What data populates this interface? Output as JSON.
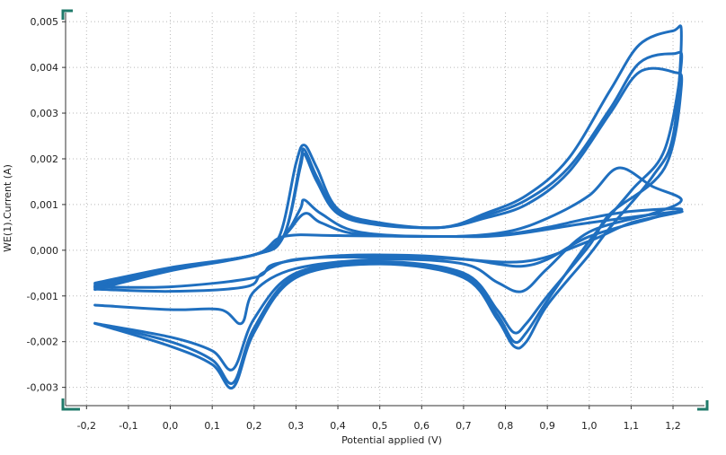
{
  "chart_data": {
    "type": "line",
    "title": "",
    "xlabel": "Potential applied (V)",
    "ylabel": "WE(1).Current (A)",
    "xlim": [
      -0.25,
      1.275
    ],
    "ylim": [
      -0.0034,
      0.0052
    ],
    "x_ticks": [
      "-0,2",
      "-0,1",
      "0,0",
      "0,1",
      "0,2",
      "0,3",
      "0,4",
      "0,5",
      "0,6",
      "0,7",
      "0,8",
      "0,9",
      "1,0",
      "1,1",
      "1,2"
    ],
    "y_ticks": [
      "0,005",
      "0,004",
      "0,003",
      "0,002",
      "0,001",
      "0,000",
      "-0,001",
      "-0,002",
      "-0,003"
    ],
    "x_tick_values": [
      -0.2,
      -0.1,
      0.0,
      0.1,
      0.2,
      0.3,
      0.4,
      0.5,
      0.6,
      0.7,
      0.8,
      0.9,
      1.0,
      1.1,
      1.2
    ],
    "y_tick_values": [
      0.005,
      0.004,
      0.003,
      0.002,
      0.001,
      0.0,
      -0.001,
      -0.002,
      -0.003
    ],
    "grid": true,
    "line_color": "#1f6fbf",
    "series": [
      {
        "values": [
          [
            -0.18,
            -0.00086
          ],
          [
            0.0,
            -0.00045
          ],
          [
            0.2,
            -0.0001
          ],
          [
            0.26,
            0.0003
          ],
          [
            0.3,
            0.0019
          ],
          [
            0.32,
            0.0023
          ],
          [
            0.35,
            0.0018
          ],
          [
            0.4,
            0.0009
          ],
          [
            0.5,
            0.0006
          ],
          [
            0.65,
            0.0005
          ],
          [
            0.75,
            0.0008
          ],
          [
            0.85,
            0.0012
          ],
          [
            0.95,
            0.002
          ],
          [
            1.05,
            0.0035
          ],
          [
            1.12,
            0.0045
          ],
          [
            1.2,
            0.0048
          ],
          [
            1.22,
            0.0047
          ],
          [
            1.2,
            0.0025
          ],
          [
            1.15,
            0.0016
          ],
          [
            1.05,
            0.0005
          ],
          [
            1.0,
            -0.0001
          ],
          [
            0.9,
            -0.0012
          ],
          [
            0.85,
            -0.002
          ],
          [
            0.82,
            -0.0021
          ],
          [
            0.78,
            -0.0015
          ],
          [
            0.7,
            -0.0006
          ],
          [
            0.5,
            -0.0003
          ],
          [
            0.3,
            -0.0006
          ],
          [
            0.2,
            -0.0018
          ],
          [
            0.15,
            -0.003
          ],
          [
            0.1,
            -0.0025
          ],
          [
            0.0,
            -0.0021
          ],
          [
            -0.18,
            -0.0016
          ]
        ]
      },
      {
        "values": [
          [
            -0.18,
            -0.00082
          ],
          [
            0.0,
            -0.00042
          ],
          [
            0.2,
            -0.0001
          ],
          [
            0.27,
            0.0003
          ],
          [
            0.31,
            0.0019
          ],
          [
            0.32,
            0.0022
          ],
          [
            0.35,
            0.0016
          ],
          [
            0.4,
            0.00085
          ],
          [
            0.5,
            0.00058
          ],
          [
            0.65,
            0.0005
          ],
          [
            0.75,
            0.00075
          ],
          [
            0.85,
            0.0011
          ],
          [
            0.95,
            0.0018
          ],
          [
            1.05,
            0.0031
          ],
          [
            1.12,
            0.0041
          ],
          [
            1.2,
            0.0043
          ],
          [
            1.22,
            0.0041
          ],
          [
            1.18,
            0.0022
          ],
          [
            1.1,
            0.0013
          ],
          [
            1.0,
            0.0002
          ],
          [
            0.9,
            -0.0011
          ],
          [
            0.85,
            -0.0018
          ],
          [
            0.82,
            -0.002
          ],
          [
            0.78,
            -0.0014
          ],
          [
            0.7,
            -0.00055
          ],
          [
            0.5,
            -0.00028
          ],
          [
            0.3,
            -0.00055
          ],
          [
            0.2,
            -0.0017
          ],
          [
            0.15,
            -0.0029
          ],
          [
            0.1,
            -0.0024
          ],
          [
            0.0,
            -0.002
          ],
          [
            -0.18,
            -0.0016
          ]
        ]
      },
      {
        "values": [
          [
            -0.18,
            -0.0008
          ],
          [
            0.0,
            -0.0004
          ],
          [
            0.2,
            -0.0001
          ],
          [
            0.27,
            0.0003
          ],
          [
            0.31,
            0.0018
          ],
          [
            0.32,
            0.0021
          ],
          [
            0.35,
            0.0015
          ],
          [
            0.4,
            0.0008
          ],
          [
            0.5,
            0.00055
          ],
          [
            0.65,
            0.0005
          ],
          [
            0.75,
            0.0007
          ],
          [
            0.85,
            0.001
          ],
          [
            0.95,
            0.0017
          ],
          [
            1.05,
            0.003
          ],
          [
            1.12,
            0.0039
          ],
          [
            1.2,
            0.0039
          ],
          [
            1.22,
            0.0036
          ],
          [
            1.18,
            0.0018
          ],
          [
            1.05,
            0.0008
          ],
          [
            1.0,
            0.0001
          ],
          [
            0.9,
            -0.001
          ],
          [
            0.85,
            -0.0016
          ],
          [
            0.82,
            -0.0018
          ],
          [
            0.78,
            -0.0013
          ],
          [
            0.7,
            -0.0005
          ],
          [
            0.5,
            -0.00025
          ],
          [
            0.3,
            -0.0005
          ],
          [
            0.2,
            -0.0015
          ],
          [
            0.15,
            -0.0026
          ],
          [
            0.1,
            -0.0022
          ],
          [
            0.0,
            -0.0019
          ],
          [
            -0.18,
            -0.0016
          ]
        ]
      },
      {
        "values": [
          [
            -0.18,
            -0.00078
          ],
          [
            0.0,
            -0.0004
          ],
          [
            0.2,
            -0.0001
          ],
          [
            0.27,
            0.0003
          ],
          [
            0.31,
            0.0009
          ],
          [
            0.32,
            0.0011
          ],
          [
            0.36,
            0.0008
          ],
          [
            0.45,
            0.0004
          ],
          [
            0.65,
            0.0003
          ],
          [
            0.8,
            0.0004
          ],
          [
            0.9,
            0.0007
          ],
          [
            1.0,
            0.0012
          ],
          [
            1.07,
            0.0018
          ],
          [
            1.15,
            0.0014
          ],
          [
            1.22,
            0.0011
          ],
          [
            1.15,
            0.0008
          ],
          [
            1.0,
            0.0004
          ],
          [
            0.9,
            -0.0004
          ],
          [
            0.84,
            -0.0009
          ],
          [
            0.78,
            -0.0007
          ],
          [
            0.7,
            -0.0003
          ],
          [
            0.5,
            -0.0002
          ],
          [
            0.3,
            -0.0004
          ],
          [
            0.2,
            -0.0009
          ],
          [
            0.17,
            -0.0016
          ],
          [
            0.12,
            -0.0013
          ],
          [
            0.0,
            -0.0013
          ],
          [
            -0.18,
            -0.0012
          ]
        ]
      },
      {
        "values": [
          [
            -0.18,
            -0.00075
          ],
          [
            0.0,
            -0.0004
          ],
          [
            0.2,
            -0.0001
          ],
          [
            0.27,
            0.0003
          ],
          [
            0.32,
            0.0008
          ],
          [
            0.36,
            0.0006
          ],
          [
            0.45,
            0.00035
          ],
          [
            0.65,
            0.0003
          ],
          [
            0.8,
            0.00035
          ],
          [
            0.9,
            0.0005
          ],
          [
            1.0,
            0.0007
          ],
          [
            1.1,
            0.00085
          ],
          [
            1.22,
            0.0009
          ],
          [
            1.15,
            0.0007
          ],
          [
            1.0,
            0.0003
          ],
          [
            0.9,
            -0.0002
          ],
          [
            0.84,
            -0.00035
          ],
          [
            0.78,
            -0.0003
          ],
          [
            0.7,
            -0.0002
          ],
          [
            0.5,
            -0.00015
          ],
          [
            0.3,
            -0.0002
          ],
          [
            0.22,
            -0.0005
          ],
          [
            0.18,
            -0.0008
          ],
          [
            0.0,
            -0.0009
          ],
          [
            -0.18,
            -0.00085
          ]
        ]
      },
      {
        "values": [
          [
            -0.18,
            -0.00072
          ],
          [
            0.0,
            -0.00038
          ],
          [
            0.2,
            -0.0001
          ],
          [
            0.27,
            0.0003
          ],
          [
            0.4,
            0.00032
          ],
          [
            0.65,
            0.0003
          ],
          [
            0.8,
            0.00033
          ],
          [
            1.0,
            0.0006
          ],
          [
            1.22,
            0.00085
          ],
          [
            1.1,
            0.0006
          ],
          [
            1.0,
            0.0002
          ],
          [
            0.84,
            -0.00025
          ],
          [
            0.6,
            -0.00012
          ],
          [
            0.4,
            -0.00012
          ],
          [
            0.25,
            -0.0003
          ],
          [
            0.2,
            -0.0006
          ],
          [
            0.0,
            -0.0008
          ],
          [
            -0.18,
            -0.0008
          ]
        ]
      }
    ]
  }
}
